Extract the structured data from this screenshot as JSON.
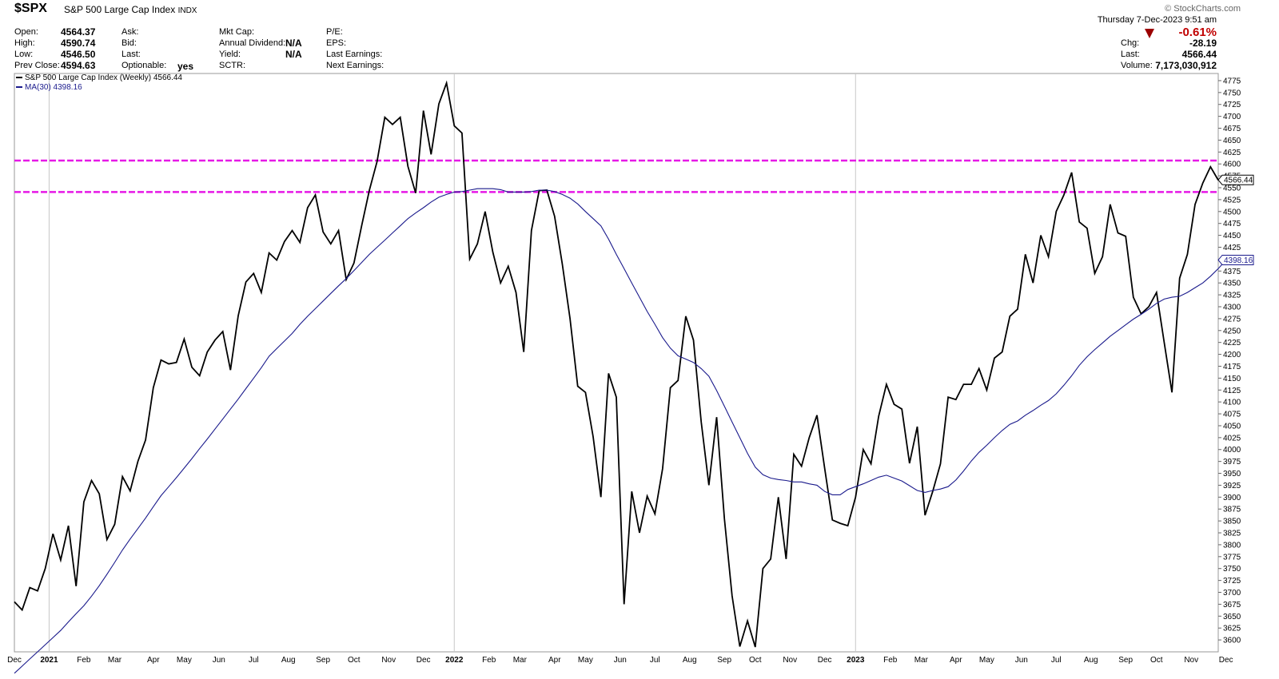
{
  "header": {
    "ticker": "$SPX",
    "name": "S&P 500 Large Cap Index",
    "exchange": "INDX",
    "brand": "© StockCharts.com",
    "datetime": "Thursday   7-Dec-2023  9:51 am",
    "fields": {
      "open_label": "Open:",
      "open": "4564.37",
      "high_label": "High:",
      "high": "4590.74",
      "low_label": "Low:",
      "low": "4546.50",
      "prevclose_label": "Prev Close:",
      "prevclose": "4594.63",
      "ask_label": "Ask:",
      "bid_label": "Bid:",
      "last_label": "Last:",
      "optionable_label": "Optionable:",
      "optionable": "yes",
      "mktcap_label": "Mkt Cap:",
      "anndiv_label": "Annual Dividend:",
      "anndiv": "N/A",
      "yield_label": "Yield:",
      "yield": "N/A",
      "sctr_label": "SCTR:",
      "pe_label": "P/E:",
      "eps_label": "EPS:",
      "lastearn_label": "Last Earnings:",
      "nextearn_label": "Next Earnings:",
      "pct_change": "-0.61%",
      "chg_label": "Chg:",
      "chg": "-28.19",
      "last2_label": "Last:",
      "last2": "4566.44",
      "volume_label": "Volume:",
      "volume": "7,173,030,912"
    },
    "colors": {
      "price": "#000000",
      "ma": "#1a1a8c",
      "hline": "#e619e6",
      "down": "#9b0000"
    }
  },
  "legend": {
    "price": "S&P 500 Large Cap Index (Weekly) 4566.44",
    "ma": "MA(30) 4398.16"
  },
  "chart_data": {
    "type": "line",
    "title": "S&P 500 Large Cap Index (Weekly)",
    "ylim": [
      3575,
      4790
    ],
    "y_ticks": [
      3600,
      3625,
      3650,
      3675,
      3700,
      3725,
      3750,
      3775,
      3800,
      3825,
      3850,
      3875,
      3900,
      3925,
      3950,
      3975,
      4000,
      4025,
      4050,
      4075,
      4100,
      4125,
      4150,
      4175,
      4200,
      4225,
      4250,
      4275,
      4300,
      4325,
      4350,
      4375,
      4400,
      4425,
      4450,
      4475,
      4500,
      4525,
      4550,
      4575,
      4600,
      4625,
      4650,
      4675,
      4700,
      4725,
      4750,
      4775
    ],
    "x_labels": [
      {
        "label": "Dec",
        "w": 0
      },
      {
        "label": "2021",
        "w": 4.5,
        "bold": true
      },
      {
        "label": "Feb",
        "w": 9
      },
      {
        "label": "Mar",
        "w": 13
      },
      {
        "label": "Apr",
        "w": 18
      },
      {
        "label": "May",
        "w": 22
      },
      {
        "label": "Jun",
        "w": 26.5
      },
      {
        "label": "Jul",
        "w": 31
      },
      {
        "label": "Aug",
        "w": 35.5
      },
      {
        "label": "Sep",
        "w": 40
      },
      {
        "label": "Oct",
        "w": 44
      },
      {
        "label": "Nov",
        "w": 48.5
      },
      {
        "label": "Dec",
        "w": 53
      },
      {
        "label": "2022",
        "w": 57,
        "bold": true
      },
      {
        "label": "Feb",
        "w": 61.5
      },
      {
        "label": "Mar",
        "w": 65.5
      },
      {
        "label": "Apr",
        "w": 70
      },
      {
        "label": "May",
        "w": 74
      },
      {
        "label": "Jun",
        "w": 78.5
      },
      {
        "label": "Jul",
        "w": 83
      },
      {
        "label": "Aug",
        "w": 87.5
      },
      {
        "label": "Sep",
        "w": 92
      },
      {
        "label": "Oct",
        "w": 96
      },
      {
        "label": "Nov",
        "w": 100.5
      },
      {
        "label": "Dec",
        "w": 105
      },
      {
        "label": "2023",
        "w": 109,
        "bold": true
      },
      {
        "label": "Feb",
        "w": 113.5
      },
      {
        "label": "Mar",
        "w": 117.5
      },
      {
        "label": "Apr",
        "w": 122
      },
      {
        "label": "May",
        "w": 126
      },
      {
        "label": "Jun",
        "w": 130.5
      },
      {
        "label": "Jul",
        "w": 135
      },
      {
        "label": "Aug",
        "w": 139.5
      },
      {
        "label": "Sep",
        "w": 144
      },
      {
        "label": "Oct",
        "w": 148
      },
      {
        "label": "Nov",
        "w": 152.5
      },
      {
        "label": "Dec",
        "w": 157
      }
    ],
    "vgrid_weeks": [
      4.5,
      57,
      109
    ],
    "hlines": [
      4607,
      4541
    ],
    "series": [
      {
        "name": "S&P 500 Large Cap Index (Weekly)",
        "values": [
          3680,
          3663,
          3710,
          3703,
          3750,
          3823,
          3768,
          3840,
          3713,
          3890,
          3935,
          3907,
          3811,
          3843,
          3943,
          3913,
          3975,
          4020,
          4130,
          4188,
          4180,
          4183,
          4232,
          4173,
          4155,
          4205,
          4230,
          4248,
          4167,
          4281,
          4352,
          4370,
          4330,
          4413,
          4398,
          4437,
          4460,
          4435,
          4508,
          4535,
          4457,
          4432,
          4460,
          4357,
          4392,
          4470,
          4545,
          4605,
          4698,
          4683,
          4698,
          4595,
          4539,
          4712,
          4620,
          4726,
          4770,
          4680,
          4665,
          4400,
          4432,
          4500,
          4415,
          4350,
          4385,
          4330,
          4205,
          4460,
          4544,
          4545,
          4490,
          4390,
          4275,
          4133,
          4120,
          4027,
          3900,
          4160,
          4110,
          3675,
          3912,
          3825,
          3902,
          3865,
          3960,
          4130,
          4145,
          4280,
          4230,
          4058,
          3925,
          4068,
          3855,
          3693,
          3586,
          3640,
          3585,
          3750,
          3770,
          3900,
          3770,
          3990,
          3965,
          4025,
          4072,
          3960,
          3852,
          3845,
          3840,
          3900,
          4000,
          3970,
          4070,
          4137,
          4095,
          4085,
          3971,
          4048,
          3862,
          3912,
          3970,
          4110,
          4105,
          4137,
          4137,
          4170,
          4125,
          4192,
          4205,
          4280,
          4295,
          4410,
          4350,
          4450,
          4405,
          4500,
          4535,
          4582,
          4478,
          4465,
          4370,
          4405,
          4515,
          4455,
          4448,
          4320,
          4285,
          4300,
          4330,
          4225,
          4120,
          4360,
          4410,
          4515,
          4560,
          4594,
          4566
        ]
      },
      {
        "name": "MA(30)",
        "values": [
          3530,
          3545,
          3560,
          3575,
          3590,
          3605,
          3620,
          3638,
          3655,
          3672,
          3692,
          3714,
          3738,
          3763,
          3789,
          3812,
          3834,
          3856,
          3880,
          3903,
          3922,
          3941,
          3961,
          3981,
          4002,
          4022,
          4043,
          4064,
          4085,
          4106,
          4128,
          4150,
          4172,
          4196,
          4212,
          4228,
          4244,
          4263,
          4280,
          4296,
          4312,
          4328,
          4344,
          4359,
          4376,
          4393,
          4410,
          4425,
          4440,
          4455,
          4470,
          4485,
          4497,
          4508,
          4520,
          4530,
          4536,
          4541,
          4542,
          4545,
          4548,
          4548,
          4548,
          4546,
          4541,
          4541,
          4541,
          4542,
          4545,
          4545,
          4542,
          4536,
          4528,
          4516,
          4500,
          4485,
          4470,
          4442,
          4410,
          4380,
          4350,
          4320,
          4290,
          4263,
          4235,
          4213,
          4197,
          4190,
          4183,
          4170,
          4154,
          4124,
          4091,
          4058,
          4025,
          3992,
          3963,
          3947,
          3940,
          3937,
          3935,
          3932,
          3932,
          3928,
          3925,
          3912,
          3905,
          3905,
          3916,
          3922,
          3928,
          3935,
          3942,
          3946,
          3940,
          3934,
          3924,
          3914,
          3910,
          3914,
          3917,
          3922,
          3936,
          3955,
          3976,
          3994,
          4009,
          4025,
          4040,
          4053,
          4060,
          4072,
          4082,
          4093,
          4103,
          4117,
          4135,
          4155,
          4177,
          4195,
          4210,
          4224,
          4238,
          4250,
          4262,
          4274,
          4284,
          4295,
          4307,
          4316,
          4320,
          4322,
          4330,
          4340,
          4350,
          4364,
          4380,
          4398
        ]
      }
    ],
    "last_labels": {
      "price": "4566.44",
      "ma": "4398.16"
    },
    "grid": true,
    "legend_position": "top-left"
  }
}
